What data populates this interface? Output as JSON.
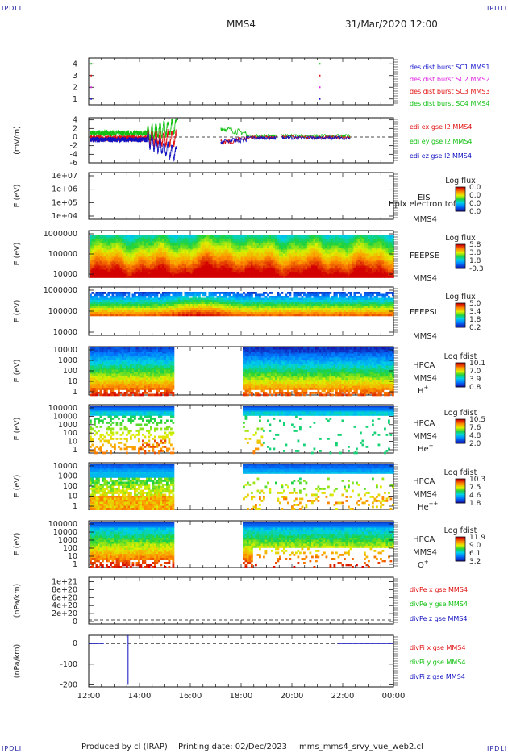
{
  "corner_label": "IPDLI",
  "header": {
    "spacecraft": "MMS4",
    "datetime": "31/Mar/2020 12:00"
  },
  "footer": {
    "producer": "Produced by cl (IRAP)",
    "printing": "Printing date: 02/Dec/2023",
    "script": "mms_mms4_srvy_vue_web2.cl"
  },
  "colors": {
    "mms1": "#1a1ad0",
    "mms2": "#e020e0",
    "mms3": "#e01010",
    "mms4": "#10c010",
    "ex": "#e01010",
    "ey": "#10c010",
    "ez": "#1010c0"
  },
  "chart_data": [
    {
      "type": "scatter",
      "ylabel": "",
      "yticks": [
        "1",
        "2",
        "3",
        "4"
      ],
      "ylim": [
        0.5,
        4.5
      ],
      "legend": [
        "des dist burst SC1 MMS1",
        "des dist burst SC2 MMS2",
        "des dist burst SC3 MMS3",
        "des dist burst SC4 MMS4"
      ],
      "series": [
        {
          "name": "des dist burst SC1 MMS1",
          "x_hours": [
            12.1,
            21.1
          ],
          "y": [
            1,
            1
          ]
        },
        {
          "name": "des dist burst SC2 MMS2",
          "x_hours": [
            12.1,
            21.1
          ],
          "y": [
            2,
            2
          ]
        },
        {
          "name": "des dist burst SC3 MMS3",
          "x_hours": [
            12.1,
            21.1
          ],
          "y": [
            3,
            3
          ]
        },
        {
          "name": "des dist burst SC4 MMS4",
          "x_hours": [
            12.1,
            21.1
          ],
          "y": [
            4,
            4
          ]
        }
      ]
    },
    {
      "type": "line",
      "ylabel": "(mV/m)",
      "yticks": [
        "4",
        "2",
        "0",
        "-2",
        "-4",
        "-6"
      ],
      "ylim": [
        -6,
        4.5
      ],
      "legend": [
        "edi ex gse l2 MMS4",
        "edi ey gse l2 MMS4",
        "edi ez gse l2 MMS4"
      ]
    },
    {
      "type": "heatmap",
      "ylabel": "E (eV)",
      "yticks": [
        "1e+07",
        "1e+06",
        "1e+05",
        "1e+04"
      ],
      "instrument": "EIS",
      "overlay_text": "Hplx electron tof",
      "sc_label": "MMS4",
      "colorbar_title": "Log flux",
      "colorbar_ticks": [
        "0.0",
        "0.0",
        "0.0",
        "0.0"
      ]
    },
    {
      "type": "heatmap",
      "ylabel": "E (eV)",
      "yticks": [
        "1000000",
        "100000",
        "10000"
      ],
      "instrument": "FEEPSE",
      "sc_label": "MMS4",
      "colorbar_title": "Log flux",
      "colorbar_ticks": [
        "5.8",
        "3.8",
        "1.8",
        "-0.3"
      ]
    },
    {
      "type": "heatmap",
      "ylabel": "E (eV)",
      "yticks": [
        "1000000",
        "100000",
        "10000"
      ],
      "instrument": "FEEPSI",
      "sc_label": "MMS4",
      "colorbar_title": "Log flux",
      "colorbar_ticks": [
        "5.0",
        "3.4",
        "1.8",
        "0.2"
      ]
    },
    {
      "type": "heatmap",
      "ylabel": "E (eV)",
      "yticks": [
        "10000",
        "1000",
        "100",
        "10",
        "1"
      ],
      "instrument": "HPCA",
      "sc_label": "MMS4",
      "species": "H",
      "species_sup": "+",
      "colorbar_title": "Log fdist",
      "colorbar_ticks": [
        "10.1",
        "7.0",
        "3.9",
        "0.8"
      ],
      "data_gap_hours": [
        15.3,
        18.0
      ]
    },
    {
      "type": "heatmap",
      "ylabel": "E (eV)",
      "yticks": [
        "100000",
        "10000",
        "1000",
        "100",
        "10",
        "1"
      ],
      "instrument": "HPCA",
      "sc_label": "MMS4",
      "species": "He",
      "species_sup": "+",
      "colorbar_title": "Log fdist",
      "colorbar_ticks": [
        "10.5",
        "7.6",
        "4.8",
        "2.0"
      ],
      "data_gap_hours": [
        15.3,
        18.0
      ]
    },
    {
      "type": "heatmap",
      "ylabel": "E (eV)",
      "yticks": [
        "10000",
        "1000",
        "100",
        "10",
        "1"
      ],
      "instrument": "HPCA",
      "sc_label": "MMS4",
      "species": "He",
      "species_sup": "++",
      "colorbar_title": "Log fdist",
      "colorbar_ticks": [
        "10.3",
        "7.5",
        "4.6",
        "1.8"
      ],
      "data_gap_hours": [
        15.3,
        18.0
      ]
    },
    {
      "type": "heatmap",
      "ylabel": "E (eV)",
      "yticks": [
        "100000",
        "10000",
        "1000",
        "100",
        "10",
        "1"
      ],
      "instrument": "HPCA",
      "sc_label": "MMS4",
      "species": "O",
      "species_sup": "+",
      "colorbar_title": "Log fdist",
      "colorbar_ticks": [
        "11.9",
        "9.0",
        "6.1",
        "3.2"
      ],
      "data_gap_hours": [
        15.3,
        18.0
      ]
    },
    {
      "type": "line",
      "ylabel": "(nPa/km)",
      "yticks": [
        "1e+21",
        "8e+20",
        "6e+20",
        "4e+20",
        "2e+20",
        "0"
      ],
      "ylim": [
        0,
        1.05e+21
      ],
      "legend": [
        "divPe x gse MMS4",
        "divPe y gse MMS4",
        "divPe z gse MMS4"
      ]
    },
    {
      "type": "line",
      "ylabel": "(nPa/km)",
      "yticks": [
        "0",
        "-100",
        "-200"
      ],
      "ylim": [
        -210,
        40
      ],
      "legend": [
        "divPi x gse MMS4",
        "divPi y gse MMS4",
        "divPi z gse MMS4"
      ],
      "spike_hour": 13.55,
      "spike_range": [
        -200,
        40
      ]
    }
  ],
  "xaxis": {
    "ticks": [
      "12:00",
      "14:00",
      "16:00",
      "18:00",
      "20:00",
      "22:00",
      "00:00"
    ],
    "range_hours": [
      12,
      24
    ]
  }
}
